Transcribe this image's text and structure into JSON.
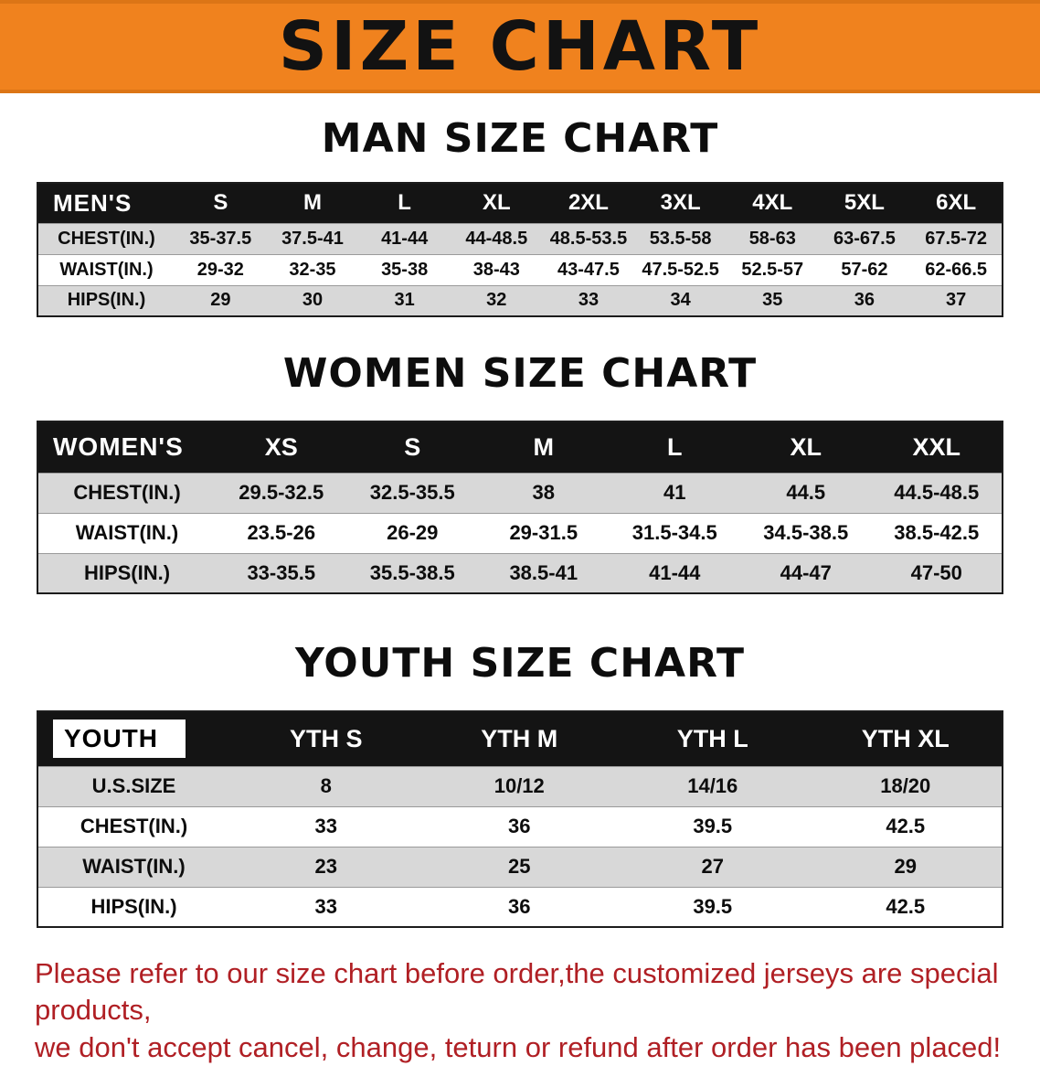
{
  "banner": {
    "title": "SIZE CHART",
    "bg_color": "#f0821e",
    "text_color": "#121212"
  },
  "colors": {
    "table_header_bg": "#141414",
    "table_alt_row": "#d8d8d8",
    "footer_text": "#b01f24"
  },
  "sections": [
    {
      "heading": "MAN SIZE CHART",
      "table": {
        "label": "MEN'S",
        "columns": [
          "S",
          "M",
          "L",
          "XL",
          "2XL",
          "3XL",
          "4XL",
          "5XL",
          "6XL"
        ],
        "rows": [
          {
            "label": "CHEST(IN.)",
            "values": [
              "35-37.5",
              "37.5-41",
              "41-44",
              "44-48.5",
              "48.5-53.5",
              "53.5-58",
              "58-63",
              "63-67.5",
              "67.5-72"
            ]
          },
          {
            "label": "WAIST(IN.)",
            "values": [
              "29-32",
              "32-35",
              "35-38",
              "38-43",
              "43-47.5",
              "47.5-52.5",
              "52.5-57",
              "57-62",
              "62-66.5"
            ]
          },
          {
            "label": "HIPS(IN.)",
            "values": [
              "29",
              "30",
              "31",
              "32",
              "33",
              "34",
              "35",
              "36",
              "37"
            ]
          }
        ]
      }
    },
    {
      "heading": "WOMEN SIZE CHART",
      "table": {
        "label": "WOMEN'S",
        "columns": [
          "XS",
          "S",
          "M",
          "L",
          "XL",
          "XXL"
        ],
        "rows": [
          {
            "label": "CHEST(IN.)",
            "values": [
              "29.5-32.5",
              "32.5-35.5",
              "38",
              "41",
              "44.5",
              "44.5-48.5"
            ]
          },
          {
            "label": "WAIST(IN.)",
            "values": [
              "23.5-26",
              "26-29",
              "29-31.5",
              "31.5-34.5",
              "34.5-38.5",
              "38.5-42.5"
            ]
          },
          {
            "label": "HIPS(IN.)",
            "values": [
              "33-35.5",
              "35.5-38.5",
              "38.5-41",
              "41-44",
              "44-47",
              "47-50"
            ]
          }
        ]
      }
    },
    {
      "heading": "YOUTH SIZE CHART",
      "table": {
        "label": "YOUTH",
        "columns": [
          "YTH S",
          "YTH M",
          "YTH L",
          "YTH XL"
        ],
        "rows": [
          {
            "label": "U.S.SIZE",
            "values": [
              "8",
              "10/12",
              "14/16",
              "18/20"
            ]
          },
          {
            "label": "CHEST(IN.)",
            "values": [
              "33",
              "36",
              "39.5",
              "42.5"
            ]
          },
          {
            "label": "WAIST(IN.)",
            "values": [
              "23",
              "25",
              "27",
              "29"
            ]
          },
          {
            "label": "HIPS(IN.)",
            "values": [
              "33",
              "36",
              "39.5",
              "42.5"
            ]
          }
        ]
      }
    }
  ],
  "footer": {
    "line1": "Please refer to our size chart before order,the customized jerseys are special products,",
    "line2": "we don't accept cancel, change, teturn or refund after order has been placed!"
  }
}
